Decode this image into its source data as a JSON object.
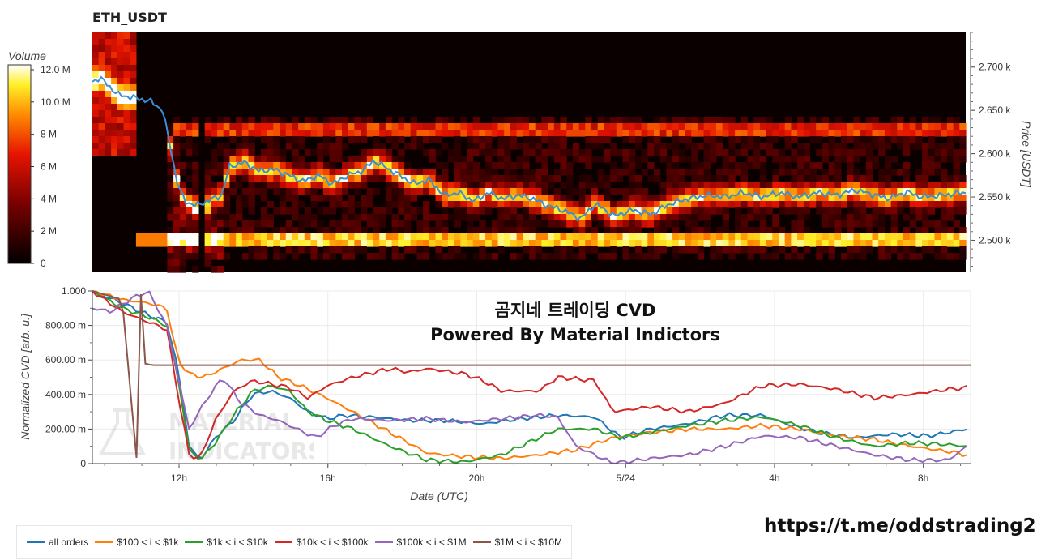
{
  "header": {
    "title": "ETH_USDT"
  },
  "heatmap": {
    "colorbar": {
      "label": "Volume",
      "ticks": [
        "12.0 M",
        "10.0 M",
        "8 M",
        "6 M",
        "4 M",
        "2 M",
        "0"
      ],
      "max": 12
    },
    "price_axis": {
      "label": "Price [USDT]",
      "ticks": [
        "2.700 k",
        "2.650 k",
        "2.600 k",
        "2.550 k",
        "2.500 k"
      ],
      "tick_values": [
        2700,
        2650,
        2600,
        2550,
        2500
      ],
      "range": [
        2463,
        2740
      ]
    }
  },
  "cvd": {
    "title_line1": "곰지네 트레이딩 CVD",
    "title_line2": "Powered By Material Indictors",
    "ylabel": "Normalized CVD [arb. u.]",
    "xlabel": "Date (UTC)",
    "yticks": [
      "1.000",
      "800.00 m",
      "600.00 m",
      "400.00 m",
      "200.00 m",
      "0"
    ],
    "xticks": [
      "12h",
      "16h",
      "20h",
      "5/24",
      "4h",
      "8h"
    ],
    "watermark_line1": "MATERIAL",
    "watermark_line2": "INDICATORS"
  },
  "legend": [
    {
      "name": "all orders",
      "color": "#1f77b4"
    },
    {
      "name": "$100 < i < $1k",
      "color": "#ff7f0e"
    },
    {
      "name": "$1k < i < $10k",
      "color": "#2ca02c"
    },
    {
      "name": "$10k < i < $100k",
      "color": "#d62728"
    },
    {
      "name": "$100k < i < $1M",
      "color": "#9467bd"
    },
    {
      "name": "$1M < i < $10M",
      "color": "#8c564b"
    }
  ],
  "footer": {
    "link": "https://t.me/oddstrading2"
  },
  "chart_data": [
    {
      "type": "heatmap",
      "title": "ETH_USDT",
      "x_unit": "hours since start (≈09:40 UTC)",
      "price_line": {
        "x": [
          0,
          0.2,
          0.7,
          1.2,
          1.6,
          1.9,
          2.1,
          2.3,
          2.5,
          2.8,
          3.1,
          3.5,
          3.7,
          4.1,
          4.5,
          4.9,
          5.3,
          5.7,
          6.1,
          6.5,
          6.9,
          7.3,
          7.6,
          7.9,
          8.3,
          8.7,
          9.1,
          9.5,
          9.9,
          10.3,
          10.7,
          11.1,
          11.5,
          11.9,
          12.3,
          12.7,
          13.2,
          13.6,
          14.1,
          14.6,
          15.1,
          15.6,
          16.1,
          16.6,
          17.1,
          17.6,
          18.1,
          18.6,
          19.1,
          19.6,
          20.1,
          20.6,
          21.1,
          21.5,
          22.0,
          22.4,
          23.0,
          23.5
        ],
        "price": [
          2683,
          2688,
          2668,
          2664,
          2660,
          2650,
          2610,
          2565,
          2545,
          2540,
          2545,
          2552,
          2585,
          2590,
          2580,
          2582,
          2575,
          2568,
          2575,
          2565,
          2575,
          2580,
          2592,
          2585,
          2575,
          2565,
          2570,
          2552,
          2555,
          2545,
          2555,
          2548,
          2552,
          2548,
          2540,
          2535,
          2525,
          2542,
          2528,
          2535,
          2530,
          2542,
          2548,
          2552,
          2550,
          2555,
          2550,
          2555,
          2550,
          2555,
          2552,
          2558,
          2553,
          2548,
          2556,
          2550,
          2552,
          2555
        ]
      }
    },
    {
      "type": "line",
      "xlabel": "Date (UTC)",
      "ylabel": "Normalized CVD [arb. u.]",
      "x_unit": "hours since start (≈09:40 UTC)",
      "xlim": [
        0,
        23.6
      ],
      "ylim": [
        0,
        1.0
      ],
      "series": [
        {
          "name": "all orders",
          "x": [
            0,
            0.8,
            1.5,
            2.0,
            2.3,
            2.6,
            2.9,
            3.3,
            3.8,
            4.3,
            4.8,
            5.3,
            5.8,
            6.3,
            6.8,
            7.5,
            8.5,
            9.5,
            10.5,
            11.5,
            12.5,
            13.5,
            14.2,
            15.0,
            16.0,
            17.0,
            18.0,
            18.8,
            19.5,
            20.5,
            21.5,
            22.5,
            23.5
          ],
          "y": [
            1.0,
            0.93,
            0.86,
            0.82,
            0.55,
            0.1,
            0.02,
            0.15,
            0.25,
            0.4,
            0.42,
            0.38,
            0.3,
            0.26,
            0.28,
            0.27,
            0.25,
            0.25,
            0.23,
            0.26,
            0.28,
            0.27,
            0.15,
            0.2,
            0.23,
            0.28,
            0.28,
            0.22,
            0.18,
            0.15,
            0.17,
            0.16,
            0.2
          ]
        },
        {
          "name": "$100 < i < $1k",
          "x": [
            0,
            0.8,
            1.5,
            2.0,
            2.3,
            2.6,
            3.0,
            3.5,
            4.0,
            4.5,
            5.0,
            5.6,
            6.3,
            7.0,
            8.0,
            9.0,
            10.0,
            11.0,
            12.0,
            13.0,
            14.0,
            15.0,
            16.0,
            17.0,
            18.0,
            19.0,
            20.0,
            21.0,
            22.0,
            23.0,
            23.5
          ],
          "y": [
            1.0,
            0.95,
            0.93,
            0.9,
            0.6,
            0.52,
            0.5,
            0.55,
            0.6,
            0.6,
            0.5,
            0.45,
            0.38,
            0.3,
            0.18,
            0.06,
            0.04,
            0.03,
            0.05,
            0.08,
            0.15,
            0.18,
            0.2,
            0.2,
            0.22,
            0.2,
            0.16,
            0.14,
            0.1,
            0.07,
            0.05
          ]
        },
        {
          "name": "$1k < i < $10k",
          "x": [
            0,
            0.8,
            1.5,
            2.0,
            2.3,
            2.6,
            2.9,
            3.3,
            3.8,
            4.3,
            4.8,
            5.3,
            5.8,
            6.3,
            7.0,
            8.0,
            9.0,
            10.0,
            11.0,
            12.0,
            12.5,
            13.5,
            14.2,
            15.0,
            16.0,
            17.0,
            18.0,
            19.0,
            20.0,
            21.0,
            22.0,
            23.0,
            23.5
          ],
          "y": [
            1.0,
            0.9,
            0.85,
            0.8,
            0.5,
            0.08,
            0.02,
            0.12,
            0.28,
            0.42,
            0.45,
            0.42,
            0.3,
            0.25,
            0.2,
            0.1,
            0.02,
            0.01,
            0.05,
            0.15,
            0.2,
            0.2,
            0.15,
            0.18,
            0.22,
            0.25,
            0.27,
            0.22,
            0.15,
            0.1,
            0.12,
            0.11,
            0.1
          ]
        },
        {
          "name": "$10k < i < $100k",
          "x": [
            0,
            0.8,
            1.5,
            2.0,
            2.3,
            2.6,
            2.9,
            3.3,
            3.8,
            4.3,
            4.8,
            5.3,
            5.8,
            6.3,
            7.0,
            8.0,
            8.5,
            9.0,
            10.0,
            10.5,
            11.0,
            12.0,
            12.5,
            13.5,
            14.0,
            15.0,
            16.0,
            17.0,
            18.0,
            19.0,
            20.0,
            21.0,
            22.0,
            23.0,
            23.5
          ],
          "y": [
            1.0,
            0.88,
            0.82,
            0.78,
            0.4,
            0.05,
            0.03,
            0.25,
            0.42,
            0.48,
            0.46,
            0.44,
            0.38,
            0.45,
            0.5,
            0.55,
            0.53,
            0.55,
            0.52,
            0.48,
            0.42,
            0.42,
            0.5,
            0.48,
            0.3,
            0.33,
            0.3,
            0.35,
            0.45,
            0.46,
            0.43,
            0.38,
            0.4,
            0.43,
            0.44
          ]
        },
        {
          "name": "$100k < i < $1M",
          "x": [
            0,
            0.5,
            1.0,
            1.5,
            2.0,
            2.3,
            2.6,
            3.0,
            3.5,
            4.0,
            4.5,
            5.0,
            5.5,
            6.0,
            6.5,
            7.0,
            8.0,
            9.0,
            10.0,
            11.0,
            12.0,
            12.5,
            13.0,
            14.0,
            15.0,
            16.0,
            17.0,
            18.0,
            19.0,
            20.0,
            21.0,
            22.0,
            23.0,
            23.5
          ],
          "y": [
            0.9,
            0.88,
            0.95,
            1.0,
            0.8,
            0.5,
            0.2,
            0.35,
            0.5,
            0.35,
            0.28,
            0.25,
            0.2,
            0.15,
            0.22,
            0.26,
            0.25,
            0.26,
            0.24,
            0.26,
            0.28,
            0.27,
            0.1,
            0.0,
            0.03,
            0.05,
            0.1,
            0.16,
            0.15,
            0.1,
            0.05,
            0.02,
            0.02,
            0.1
          ]
        },
        {
          "name": "$1M < i < $10M",
          "x": [
            0,
            0.8,
            1.2,
            1.25,
            1.3,
            1.4,
            1.6,
            23.6
          ],
          "y": [
            1.0,
            0.95,
            0.0,
            0.0,
            1.0,
            0.58,
            0.57,
            0.57
          ]
        }
      ]
    }
  ]
}
